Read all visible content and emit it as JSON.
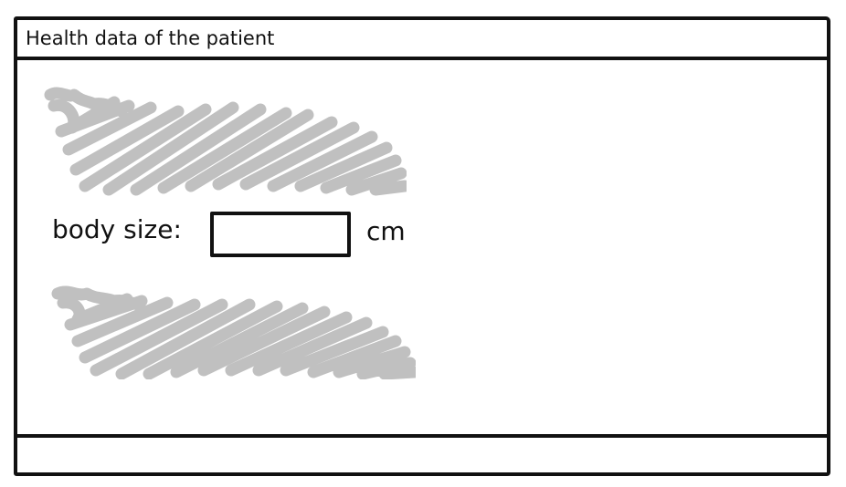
{
  "window": {
    "title": "Health data of the patient"
  },
  "form": {
    "body_size_label": "body size:",
    "body_size_value": "",
    "body_size_unit": "cm"
  },
  "placeholders": {
    "scribble_color": "#c0c0c0",
    "count": 2
  },
  "colors": {
    "ink": "#111111",
    "background": "#ffffff"
  }
}
